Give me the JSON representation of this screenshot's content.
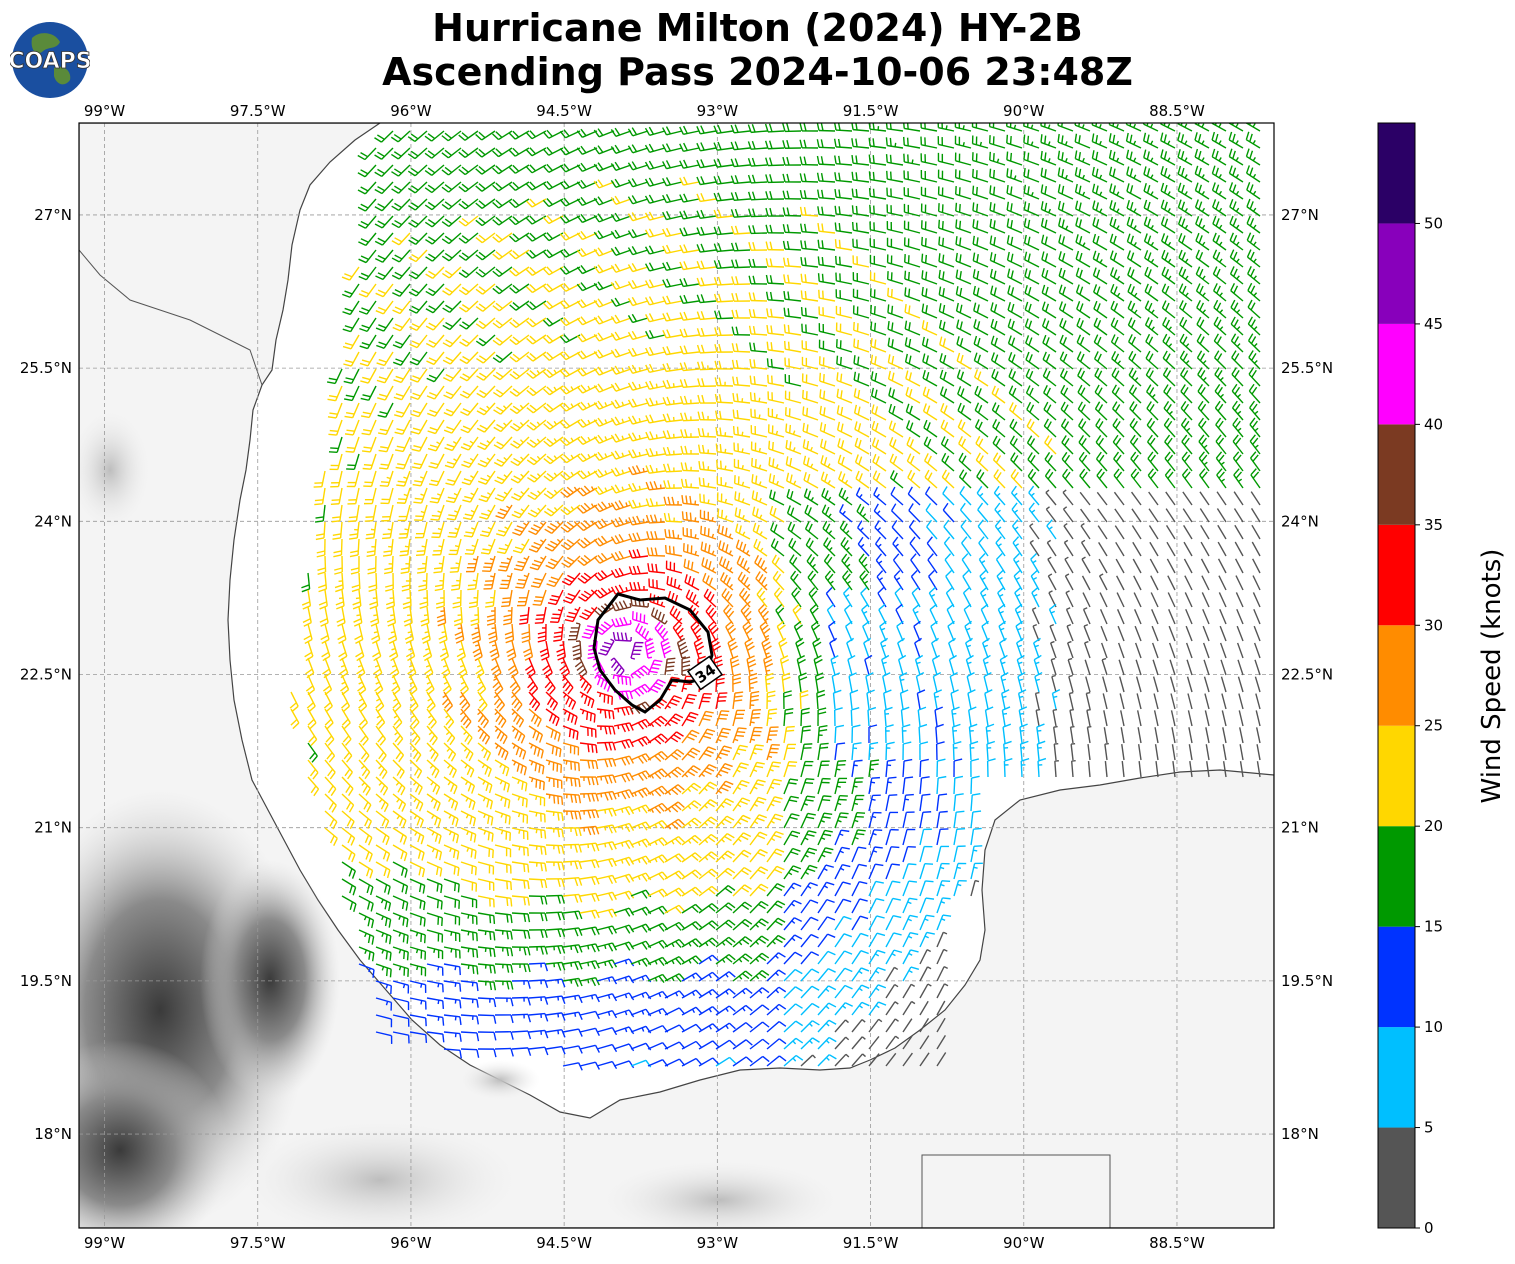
{
  "title": {
    "line1": "Hurricane Milton (2024) HY-2B",
    "line2": "Ascending Pass 2024-10-06 23:48Z"
  },
  "logo": {
    "text": "COAPS",
    "icon": "globe-icon"
  },
  "map": {
    "lon_range": [
      -99.25,
      -87.55
    ],
    "lat_range": [
      17.08,
      27.9
    ],
    "lon_ticks": [
      "99°W",
      "97.5°W",
      "96°W",
      "94.5°W",
      "93°W",
      "91.5°W",
      "90°W",
      "88.5°W"
    ],
    "lon_tick_values": [
      -99,
      -97.5,
      -96,
      -94.5,
      -93,
      -91.5,
      -90,
      -88.5
    ],
    "lat_ticks": [
      "27°N",
      "25.5°N",
      "24°N",
      "22.5°N",
      "21°N",
      "19.5°N",
      "18°N"
    ],
    "lat_tick_values": [
      27,
      25.5,
      24,
      22.5,
      21,
      19.5,
      18
    ],
    "gridlines": true,
    "storm_center": {
      "lon": -93.9,
      "lat": 22.7
    },
    "contour_label": "34",
    "land_color": "#ffffff",
    "terrain_color": "#6b6b6b"
  },
  "colorbar": {
    "label": "Wind Speed (knots)",
    "tick_labels": [
      "0",
      "5",
      "10",
      "15",
      "20",
      "25",
      "30",
      "35",
      "40",
      "45",
      "50"
    ],
    "bounds": [
      0,
      5,
      10,
      15,
      20,
      25,
      30,
      35,
      40,
      45,
      50,
      55
    ],
    "colors": [
      "#555555",
      "#00bfff",
      "#0033ff",
      "#009900",
      "#ffd700",
      "#ff8c00",
      "#ff0000",
      "#7b3a22",
      "#ff00ff",
      "#8800bb",
      "#2b0066"
    ]
  }
}
